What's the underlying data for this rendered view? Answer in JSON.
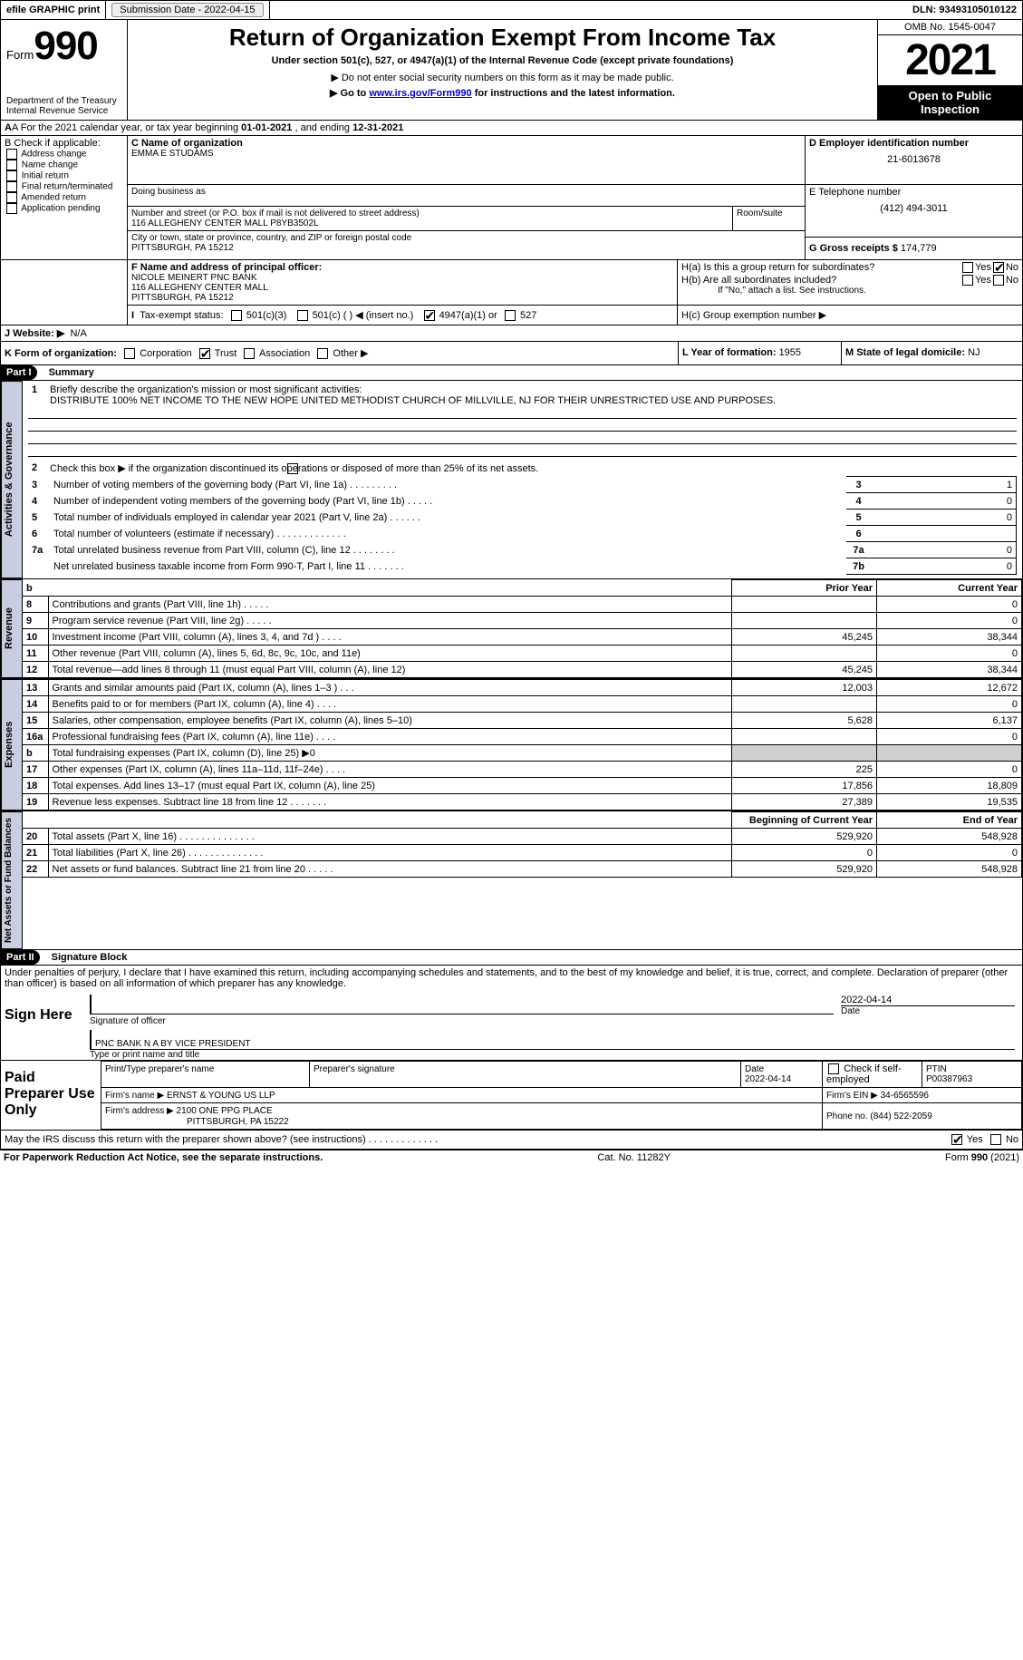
{
  "topbar": {
    "efile": "efile GRAPHIC print",
    "submission_label": "Submission Date - ",
    "submission_date": "2022-04-15",
    "dln_label": "DLN: ",
    "dln": "93493105010122"
  },
  "header": {
    "form_word": "Form",
    "form_num": "990",
    "dept": "Department of the Treasury",
    "irs": "Internal Revenue Service",
    "title": "Return of Organization Exempt From Income Tax",
    "subtitle": "Under section 501(c), 527, or 4947(a)(1) of the Internal Revenue Code (except private foundations)",
    "note1": "▶ Do not enter social security numbers on this form as it may be made public.",
    "note2_pre": "▶ Go to ",
    "note2_link": "www.irs.gov/Form990",
    "note2_post": " for instructions and the latest information.",
    "omb": "OMB No. 1545-0047",
    "year": "2021",
    "otp": "Open to Public Inspection"
  },
  "lineA": {
    "text_pre": "A For the 2021 calendar year, or tax year beginning ",
    "begin": "01-01-2021",
    "mid": " , and ending ",
    "end": "12-31-2021"
  },
  "B": {
    "title": "B Check if applicable:",
    "opts": [
      "Address change",
      "Name change",
      "Initial return",
      "Final return/terminated",
      "Amended return",
      "Application pending"
    ]
  },
  "C": {
    "label": "C Name of organization",
    "name": "EMMA E STUDAMS",
    "dba_label": "Doing business as",
    "addr_label": "Number and street (or P.O. box if mail is not delivered to street address)",
    "room_label": "Room/suite",
    "addr": "116 ALLEGHENY CENTER MALL P8YB3502L",
    "city_label": "City or town, state or province, country, and ZIP or foreign postal code",
    "city": "PITTSBURGH, PA  15212"
  },
  "D": {
    "label": "D Employer identification number",
    "val": "21-6013678"
  },
  "E": {
    "label": "E Telephone number",
    "val": "(412) 494-3011"
  },
  "G": {
    "label": "G Gross receipts $ ",
    "val": "174,779"
  },
  "F": {
    "label": "F Name and address of principal officer:",
    "name": "NICOLE MEINERT PNC BANK",
    "addr1": "116 ALLEGHENY CENTER MALL",
    "addr2": "PITTSBURGH, PA  15212"
  },
  "H": {
    "a": "H(a)  Is this a group return for subordinates?",
    "b": "H(b)  Are all subordinates included?",
    "b_note": "If \"No,\" attach a list. See instructions.",
    "c": "H(c)  Group exemption number ▶",
    "yes": "Yes",
    "no": "No"
  },
  "I": {
    "label": "Tax-exempt status:",
    "o1": "501(c)(3)",
    "o2": "501(c) (  ) ◀ (insert no.)",
    "o3": "4947(a)(1) or",
    "o4": "527"
  },
  "J": {
    "label": "J   Website: ▶",
    "val": "N/A"
  },
  "K": {
    "label": "K Form of organization:",
    "o1": "Corporation",
    "o2": "Trust",
    "o3": "Association",
    "o4": "Other ▶"
  },
  "L": {
    "label": "L Year of formation: ",
    "val": "1955"
  },
  "M": {
    "label": "M State of legal domicile: ",
    "val": "NJ"
  },
  "parts": {
    "p1": "Part I",
    "p1t": "Summary",
    "p2": "Part II",
    "p2t": "Signature Block"
  },
  "summary": {
    "l1_label": "Briefly describe the organization's mission or most significant activities:",
    "l1_text": "DISTRIBUTE 100% NET INCOME TO THE NEW HOPE UNITED METHODIST CHURCH OF MILLVILLE, NJ FOR THEIR UNRESTRICTED USE AND PURPOSES.",
    "l2": "Check this box ▶      if the organization discontinued its operations or disposed of more than 25% of its net assets.",
    "l3": "Number of voting members of the governing body (Part VI, line 1a)   .    .    .    .    .    .    .    .    .",
    "l4": "Number of independent voting members of the governing body (Part VI, line 1b)   .    .    .    .    .",
    "l5": "Total number of individuals employed in calendar year 2021 (Part V, line 2a)   .    .    .    .    .    .",
    "l6": "Total number of volunteers (estimate if necessary)    .    .    .    .    .    .    .    .    .    .    .    .    .",
    "l7a": "Total unrelated business revenue from Part VIII, column (C), line 12    .    .    .    .    .    .    .    .",
    "l7b": "Net unrelated business taxable income from Form 990-T, Part I, line 11   .    .    .    .    .    .    .",
    "v3": "1",
    "v4": "0",
    "v5": "0",
    "v6": "",
    "v7a": "0",
    "v7b": "0",
    "hdr_py": "Prior Year",
    "hdr_cy": "Current Year",
    "rows_rev": [
      {
        "n": "8",
        "t": "Contributions and grants (Part VIII, line 1h)   .    .    .    .    .",
        "py": "",
        "cy": "0"
      },
      {
        "n": "9",
        "t": "Program service revenue (Part VIII, line 2g)   .    .    .    .    .",
        "py": "",
        "cy": "0"
      },
      {
        "n": "10",
        "t": "Investment income (Part VIII, column (A), lines 3, 4, and 7d )   .    .    .    .",
        "py": "45,245",
        "cy": "38,344"
      },
      {
        "n": "11",
        "t": "Other revenue (Part VIII, column (A), lines 5, 6d, 8c, 9c, 10c, and 11e)",
        "py": "",
        "cy": "0"
      },
      {
        "n": "12",
        "t": "Total revenue—add lines 8 through 11 (must equal Part VIII, column (A), line 12)",
        "py": "45,245",
        "cy": "38,344"
      }
    ],
    "rows_exp": [
      {
        "n": "13",
        "t": "Grants and similar amounts paid (Part IX, column (A), lines 1–3 )   .    .    .",
        "py": "12,003",
        "cy": "12,672"
      },
      {
        "n": "14",
        "t": "Benefits paid to or for members (Part IX, column (A), line 4)   .    .    .    .",
        "py": "",
        "cy": "0"
      },
      {
        "n": "15",
        "t": "Salaries, other compensation, employee benefits (Part IX, column (A), lines 5–10)",
        "py": "5,628",
        "cy": "6,137"
      },
      {
        "n": "16a",
        "t": "Professional fundraising fees (Part IX, column (A), line 11e)   .    .    .    .",
        "py": "",
        "cy": "0"
      },
      {
        "n": "b",
        "t": "Total fundraising expenses (Part IX, column (D), line 25) ▶0",
        "py": "__SHADE__",
        "cy": "__SHADE__"
      },
      {
        "n": "17",
        "t": "Other expenses (Part IX, column (A), lines 11a–11d, 11f–24e)   .    .    .    .",
        "py": "225",
        "cy": "0"
      },
      {
        "n": "18",
        "t": "Total expenses. Add lines 13–17 (must equal Part IX, column (A), line 25)",
        "py": "17,856",
        "cy": "18,809"
      },
      {
        "n": "19",
        "t": "Revenue less expenses. Subtract line 18 from line 12   .    .    .    .    .    .    .",
        "py": "27,389",
        "cy": "19,535"
      }
    ],
    "hdr_boy": "Beginning of Current Year",
    "hdr_eoy": "End of Year",
    "rows_net": [
      {
        "n": "20",
        "t": "Total assets (Part X, line 16)   .    .    .    .    .    .    .    .    .    .    .    .    .    .",
        "py": "529,920",
        "cy": "548,928"
      },
      {
        "n": "21",
        "t": "Total liabilities (Part X, line 26)   .    .    .    .    .    .    .    .    .    .    .    .    .    .",
        "py": "0",
        "cy": "0"
      },
      {
        "n": "22",
        "t": "Net assets or fund balances. Subtract line 21 from line 20    .    .    .    .    .",
        "py": "529,920",
        "cy": "548,928"
      }
    ],
    "vtabs": {
      "ag": "Activities & Governance",
      "rev": "Revenue",
      "exp": "Expenses",
      "net": "Net Assets or Fund Balances"
    }
  },
  "sig": {
    "perjury": "Under penalties of perjury, I declare that I have examined this return, including accompanying schedules and statements, and to the best of my knowledge and belief, it is true, correct, and complete. Declaration of preparer (other than officer) is based on all information of which preparer has any knowledge.",
    "sign_here": "Sign Here",
    "sig_officer": "Signature of officer",
    "sig_date": "2022-04-14",
    "date_lbl": "Date",
    "name_title": "PNC BANK N A BY VICE PRESIDENT",
    "type_name": "Type or print name and title",
    "paid": "Paid Preparer Use Only",
    "pp_name_lbl": "Print/Type preparer's name",
    "pp_sig_lbl": "Preparer's signature",
    "pp_date_lbl": "Date",
    "pp_date": "2022-04-14",
    "pp_check": "Check        if self-employed",
    "ptin_lbl": "PTIN",
    "ptin": "P00387963",
    "firm_name_lbl": "Firm's name      ▶ ",
    "firm_name": "ERNST & YOUNG US LLP",
    "firm_ein_lbl": "Firm's EIN ▶ ",
    "firm_ein": "34-6565596",
    "firm_addr_lbl": "Firm's address ▶ ",
    "firm_addr1": "2100 ONE PPG PLACE",
    "firm_addr2": "PITTSBURGH, PA  15222",
    "phone_lbl": "Phone no. ",
    "phone": "(844) 522-2059",
    "discuss": "May the IRS discuss this return with the preparer shown above? (see instructions)   .    .    .    .    .    .    .    .    .    .    .    .    .",
    "yes": "Yes",
    "no": "No"
  },
  "footer": {
    "pra": "For Paperwork Reduction Act Notice, see the separate instructions.",
    "cat": "Cat. No. 11282Y",
    "form": "Form 990 (2021)"
  }
}
